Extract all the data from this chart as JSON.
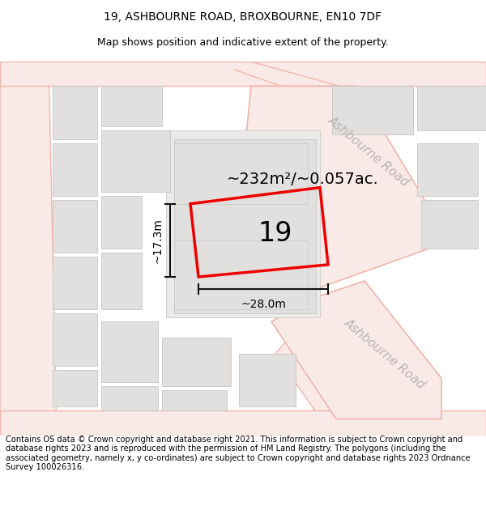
{
  "title_line1": "19, ASHBOURNE ROAD, BROXBOURNE, EN10 7DF",
  "title_line2": "Map shows position and indicative extent of the property.",
  "footer_text": "Contains OS data © Crown copyright and database right 2021. This information is subject to Crown copyright and database rights 2023 and is reproduced with the permission of HM Land Registry. The polygons (including the associated geometry, namely x, y co-ordinates) are subject to Crown copyright and database rights 2023 Ordnance Survey 100026316.",
  "area_label": "~232m²/~0.057ac.",
  "number_label": "19",
  "width_label": "~28.0m",
  "height_label": "~17.3m",
  "road_label_top": "Ashbourne Road",
  "road_label_bottom": "Ashbourne Road",
  "map_bg": "#ffffff",
  "building_fill": "#e2e0df",
  "building_stroke": "#c8c6c5",
  "road_line_color": "#f0b4aa",
  "road_fill_color": "#faeae7",
  "highlight_color": "#ee0000",
  "text_gray": "#b8b4b2",
  "dim_color": "#111111"
}
